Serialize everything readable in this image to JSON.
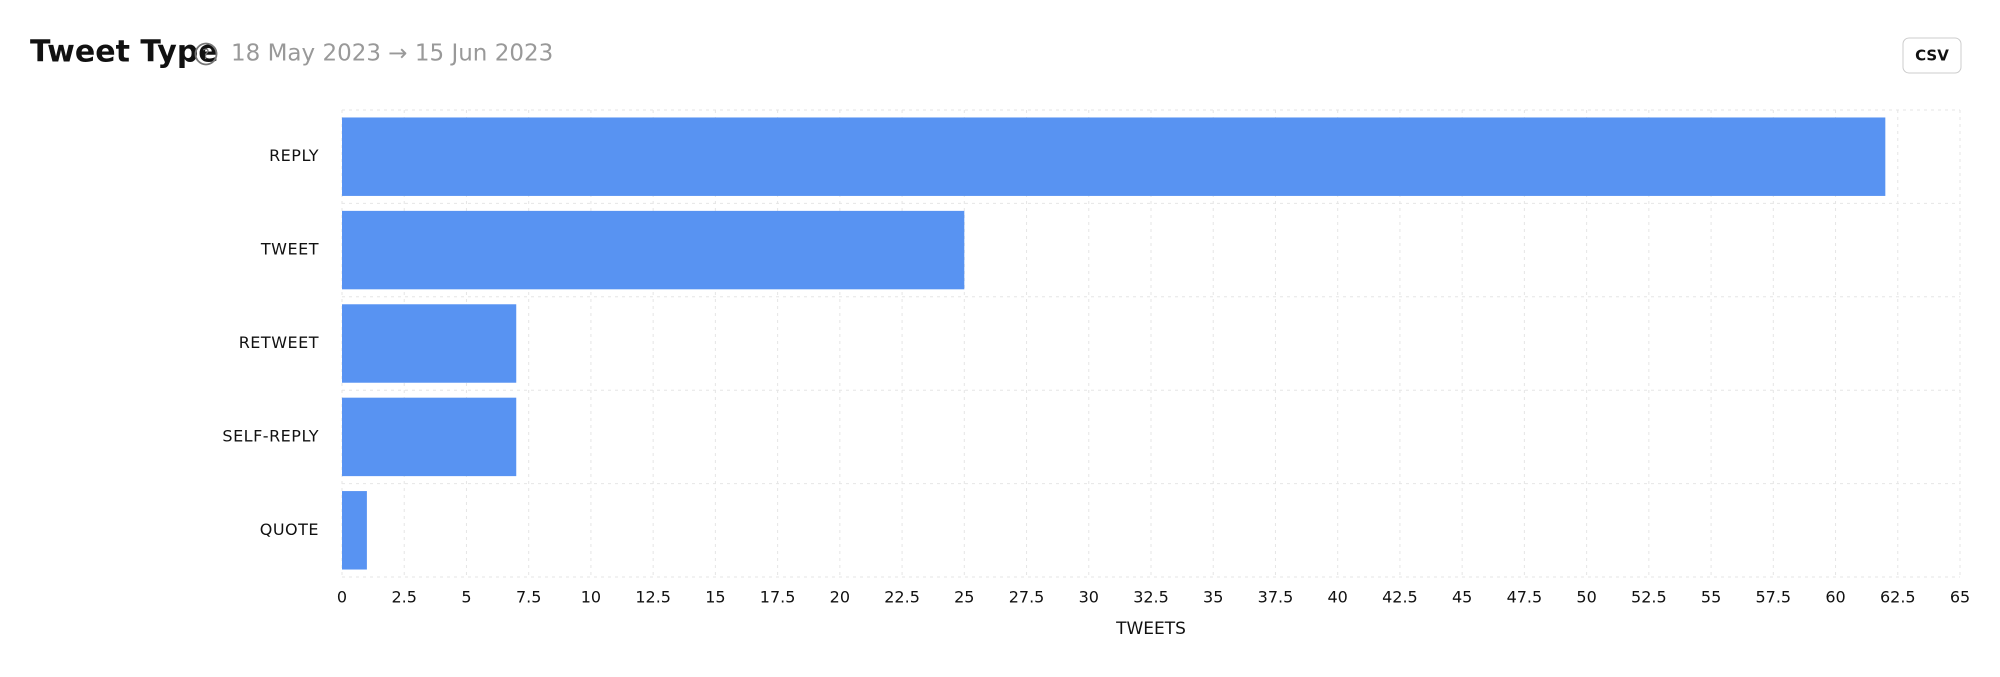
{
  "chart_data": {
    "type": "bar",
    "orientation": "horizontal",
    "title": "Tweet Type",
    "subtitle": "18 May 2023 → 15 Jun 2023",
    "button": "CSV",
    "x_label": "TWEETS",
    "categories": [
      "REPLY",
      "TWEET",
      "RETWEET",
      "SELF-REPLY",
      "QUOTE"
    ],
    "values": [
      62,
      25,
      7,
      7,
      1
    ],
    "color": "#5893f2",
    "xlim": [
      0,
      65
    ],
    "xticks": [
      0,
      2.5,
      5,
      7.5,
      10,
      12.5,
      15,
      17.5,
      20,
      22.5,
      25,
      27.5,
      30,
      32.5,
      35,
      37.5,
      40,
      42.5,
      45,
      47.5,
      50,
      52.5,
      55,
      57.5,
      60,
      62.5,
      65
    ],
    "grid": true
  }
}
